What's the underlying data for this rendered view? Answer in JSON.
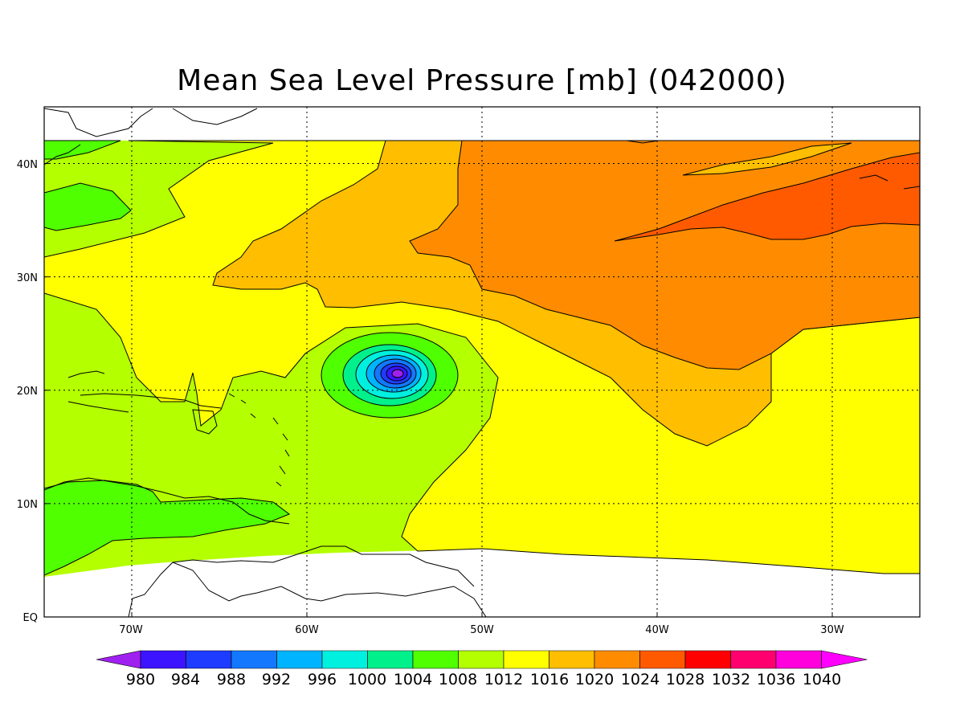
{
  "title": "Mean Sea Level Pressure [mb] (042000)",
  "map": {
    "lon_range": [
      -75,
      -25
    ],
    "lat_range": [
      0,
      45
    ],
    "x_ticks": [
      "70W",
      "60W",
      "50W",
      "40W",
      "30W"
    ],
    "y_ticks": [
      "EQ",
      "10N",
      "20N",
      "30N",
      "40N"
    ],
    "grid": "dotted",
    "cyclone_center": {
      "lon": -55,
      "lat": 21.3
    }
  },
  "colorbar": {
    "levels": [
      "980",
      "984",
      "988",
      "992",
      "996",
      "1000",
      "1004",
      "1008",
      "1012",
      "1016",
      "1020",
      "1024",
      "1028",
      "1032",
      "1036",
      "1040"
    ],
    "colors": [
      "#a020f0",
      "#3c14ff",
      "#1e3cff",
      "#1478ff",
      "#00b4ff",
      "#00f0e0",
      "#00f08c",
      "#50ff00",
      "#b4ff00",
      "#ffff00",
      "#ffbe00",
      "#ff8c00",
      "#ff5a00",
      "#ff0000",
      "#ff006e",
      "#ff00dc",
      "#ff00ff"
    ]
  }
}
